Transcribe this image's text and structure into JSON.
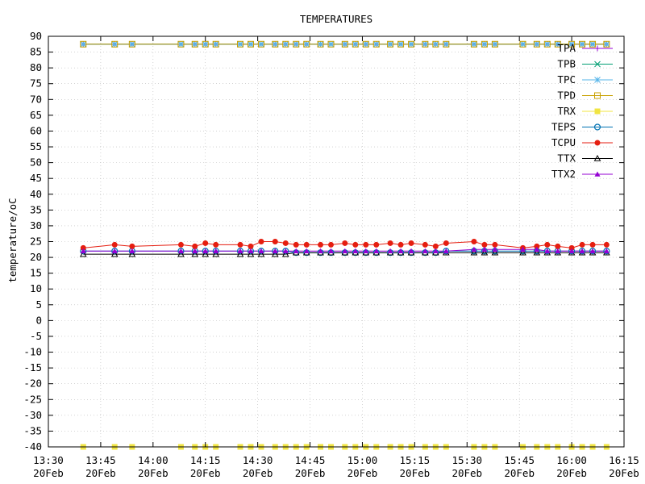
{
  "chart_data": {
    "type": "line",
    "title": "TEMPERATURES",
    "ylabel": "temperature/oC",
    "xlabel": "",
    "ylim": [
      -40,
      90
    ],
    "y_ticks": [
      -40,
      -35,
      -30,
      -25,
      -20,
      -15,
      -10,
      -5,
      0,
      5,
      10,
      15,
      20,
      25,
      30,
      35,
      40,
      45,
      50,
      55,
      60,
      65,
      70,
      75,
      80,
      85,
      90
    ],
    "x_axis": {
      "ticks": [
        {
          "t": "13:30",
          "d": "20Feb"
        },
        {
          "t": "13:45",
          "d": "20Feb"
        },
        {
          "t": "14:00",
          "d": "20Feb"
        },
        {
          "t": "14:15",
          "d": "20Feb"
        },
        {
          "t": "14:30",
          "d": "20Feb"
        },
        {
          "t": "14:45",
          "d": "20Feb"
        },
        {
          "t": "15:00",
          "d": "20Feb"
        },
        {
          "t": "15:15",
          "d": "20Feb"
        },
        {
          "t": "15:30",
          "d": "20Feb"
        },
        {
          "t": "15:45",
          "d": "20Feb"
        },
        {
          "t": "16:00",
          "d": "20Feb"
        },
        {
          "t": "16:15",
          "d": "20Feb"
        }
      ],
      "range": [
        "13:30",
        "16:15"
      ]
    },
    "grid": true,
    "legend_position": "top-right",
    "x": [
      "13:40",
      "13:49",
      "13:54",
      "14:08",
      "14:12",
      "14:15",
      "14:18",
      "14:25",
      "14:28",
      "14:31",
      "14:35",
      "14:38",
      "14:41",
      "14:44",
      "14:48",
      "14:51",
      "14:55",
      "14:58",
      "15:01",
      "15:04",
      "15:08",
      "15:11",
      "15:14",
      "15:18",
      "15:21",
      "15:24",
      "15:32",
      "15:35",
      "15:38",
      "15:46",
      "15:50",
      "15:53",
      "15:56",
      "16:00",
      "16:03",
      "16:06",
      "16:10"
    ],
    "series": [
      {
        "name": "TPA",
        "color": "#9400d3",
        "marker": "plus",
        "values": [
          87.5,
          87.5,
          87.5,
          87.5,
          87.5,
          87.5,
          87.5,
          87.5,
          87.5,
          87.5,
          87.5,
          87.5,
          87.5,
          87.5,
          87.5,
          87.5,
          87.5,
          87.5,
          87.5,
          87.5,
          87.5,
          87.5,
          87.5,
          87.5,
          87.5,
          87.5,
          87.5,
          87.5,
          87.5,
          87.5,
          87.5,
          87.5,
          87.5,
          87.5,
          87.5,
          87.5,
          87.5
        ]
      },
      {
        "name": "TPB",
        "color": "#009e73",
        "marker": "cross",
        "values": [
          87.5,
          87.5,
          87.5,
          87.5,
          87.5,
          87.5,
          87.5,
          87.5,
          87.5,
          87.5,
          87.5,
          87.5,
          87.5,
          87.5,
          87.5,
          87.5,
          87.5,
          87.5,
          87.5,
          87.5,
          87.5,
          87.5,
          87.5,
          87.5,
          87.5,
          87.5,
          87.5,
          87.5,
          87.5,
          87.5,
          87.5,
          87.5,
          87.5,
          87.5,
          87.5,
          87.5,
          87.5
        ]
      },
      {
        "name": "TPC",
        "color": "#56b4e9",
        "marker": "star",
        "values": [
          87.5,
          87.5,
          87.5,
          87.5,
          87.5,
          87.5,
          87.5,
          87.5,
          87.5,
          87.5,
          87.5,
          87.5,
          87.5,
          87.5,
          87.5,
          87.5,
          87.5,
          87.5,
          87.5,
          87.5,
          87.5,
          87.5,
          87.5,
          87.5,
          87.5,
          87.5,
          87.5,
          87.5,
          87.5,
          87.5,
          87.5,
          87.5,
          87.5,
          87.5,
          87.5,
          87.5,
          87.5
        ]
      },
      {
        "name": "TPD",
        "color": "#c8a000",
        "marker": "square-open",
        "values": [
          87.5,
          87.5,
          87.5,
          87.5,
          87.5,
          87.5,
          87.5,
          87.5,
          87.5,
          87.5,
          87.5,
          87.5,
          87.5,
          87.5,
          87.5,
          87.5,
          87.5,
          87.5,
          87.5,
          87.5,
          87.5,
          87.5,
          87.5,
          87.5,
          87.5,
          87.5,
          87.5,
          87.5,
          87.5,
          87.5,
          87.5,
          87.5,
          87.5,
          87.5,
          87.5,
          87.5,
          87.5
        ]
      },
      {
        "name": "TRX",
        "color": "#f0e442",
        "marker": "square-filled",
        "values": [
          -40,
          -40,
          -40,
          -40,
          -40,
          -40,
          -40,
          -40,
          -40,
          -40,
          -40,
          -40,
          -40,
          -40,
          -40,
          -40,
          -40,
          -40,
          -40,
          -40,
          -40,
          -40,
          -40,
          -40,
          -40,
          -40,
          -40,
          -40,
          -40,
          -40,
          -40,
          -40,
          -40,
          -40,
          -40,
          -40,
          -40
        ]
      },
      {
        "name": "TEPS",
        "color": "#0072b2",
        "marker": "circle-open",
        "values": [
          22,
          22,
          22,
          22,
          22,
          22,
          22,
          22,
          22,
          22,
          22,
          22,
          21.5,
          21.5,
          21.5,
          21.5,
          21.5,
          21.5,
          21.5,
          21.5,
          21.5,
          21.5,
          21.5,
          21.5,
          21.5,
          22,
          22,
          22,
          22,
          22,
          22,
          22,
          22,
          22,
          22,
          22,
          22
        ]
      },
      {
        "name": "TCPU",
        "color": "#e51e10",
        "marker": "circle-filled",
        "values": [
          23,
          24,
          23.5,
          24,
          23.5,
          24.5,
          24,
          24,
          23.5,
          25,
          25,
          24.5,
          24,
          24,
          24,
          24,
          24.5,
          24,
          24,
          24,
          24.5,
          24,
          24.5,
          24,
          23.5,
          24.5,
          25,
          24,
          24,
          23,
          23.5,
          24,
          23.5,
          23,
          24,
          24,
          24
        ]
      },
      {
        "name": "TTX",
        "color": "#000000",
        "marker": "triangle-open",
        "values": [
          21,
          21,
          21,
          21,
          21,
          21,
          21,
          21,
          21,
          21,
          21,
          21,
          21.5,
          21.5,
          21.5,
          21.5,
          21.5,
          21.5,
          21.5,
          21.5,
          21.5,
          21.5,
          21.5,
          21.5,
          21.5,
          21.5,
          21.5,
          21.5,
          21.5,
          21.5,
          21.5,
          21.5,
          21.5,
          21.5,
          21.5,
          21.5,
          21.5
        ]
      },
      {
        "name": "TTX2",
        "color": "#9400d3",
        "marker": "triangle-filled",
        "values": [
          22,
          22,
          22,
          22,
          22,
          22,
          22,
          22,
          22,
          22,
          22,
          22,
          22,
          22,
          22,
          22,
          22,
          22,
          22,
          22,
          22,
          22,
          22,
          22,
          22,
          22,
          22.5,
          22.5,
          22.5,
          22.5,
          22.5,
          22,
          22,
          22,
          22,
          22,
          22
        ]
      }
    ]
  }
}
